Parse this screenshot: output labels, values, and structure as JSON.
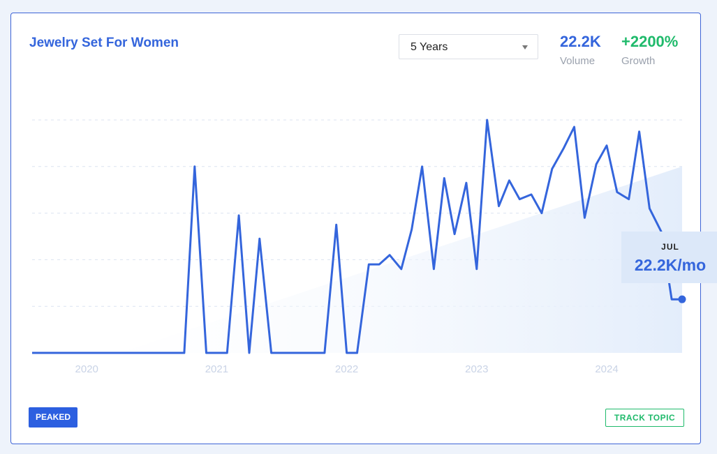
{
  "card": {
    "title": "Jewelry Set For Women",
    "range_select": {
      "value": "5 Years"
    },
    "volume": {
      "value": "22.2K",
      "label": "Volume"
    },
    "growth": {
      "value": "+2200%",
      "label": "Growth"
    },
    "tooltip": {
      "month": "JUL",
      "value": "22.2K/mo"
    },
    "status_badge": "PEAKED",
    "track_button": "TRACK TOPIC"
  },
  "colors": {
    "line": "#3465dc",
    "trend_fill": "#e3edfb",
    "grid": "#dbe3f0",
    "axis_label": "#c9d3e6"
  },
  "chart_data": {
    "type": "line",
    "title": "Jewelry Set For Women",
    "xlabel": "",
    "ylabel": "",
    "x_tick_labels": [
      "2020",
      "2021",
      "2022",
      "2023",
      "2024"
    ],
    "x_range": [
      2019.58,
      2024.58
    ],
    "y_range": [
      0,
      100
    ],
    "grid": "horizontal dashed",
    "series": [
      {
        "x": [
          2019.58,
          2019.67,
          2019.75,
          2019.83,
          2019.92,
          2020.0,
          2020.08,
          2020.17,
          2020.25,
          2020.33,
          2020.42,
          2020.5,
          2020.58,
          2020.67,
          2020.75,
          2020.83,
          2020.92,
          2021.0,
          2021.08,
          2021.17,
          2021.25,
          2021.33,
          2021.42,
          2021.5,
          2021.58,
          2021.67,
          2021.75,
          2021.83,
          2021.92,
          2022.0,
          2022.08,
          2022.17,
          2022.25,
          2022.33,
          2022.42,
          2022.5,
          2022.58,
          2022.67,
          2022.75,
          2022.83,
          2022.92,
          2023.0,
          2023.08,
          2023.17,
          2023.25,
          2023.33,
          2023.42,
          2023.5,
          2023.58,
          2023.67,
          2023.75,
          2023.83,
          2023.92,
          2024.0,
          2024.08,
          2024.17,
          2024.25,
          2024.33,
          2024.42,
          2024.5,
          2024.58
        ],
        "y": [
          0,
          0,
          0,
          0,
          0,
          0,
          0,
          0,
          0,
          0,
          0,
          0,
          0,
          0,
          0,
          80,
          0,
          0,
          0,
          59,
          0,
          49,
          0,
          0,
          0,
          0,
          0,
          0,
          55,
          0,
          0,
          38,
          38,
          42,
          36,
          53,
          80,
          36,
          75,
          51,
          73,
          36,
          100,
          63,
          74,
          66,
          68,
          60,
          79,
          88,
          97,
          58,
          81,
          89,
          69,
          66,
          95,
          62,
          52,
          23,
          23
        ]
      }
    ],
    "trend": {
      "x": [
        2019.58,
        2020.25,
        2024.58
      ],
      "y": [
        0,
        0,
        80
      ]
    },
    "highlight": {
      "month": "JUL",
      "value": "22.2K/mo"
    }
  }
}
